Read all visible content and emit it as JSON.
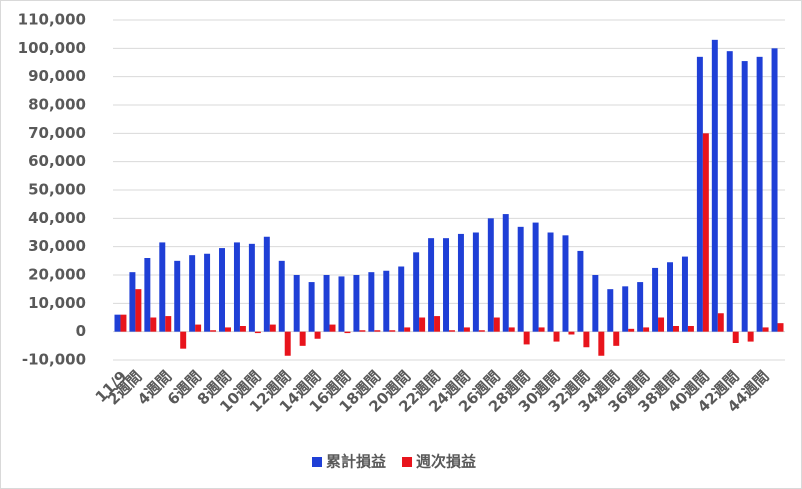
{
  "chart_data": {
    "type": "bar",
    "categories": [
      "11/9",
      "2週間",
      null,
      "4週間",
      null,
      "6週間",
      null,
      "8週間",
      null,
      "10週間",
      null,
      "12週間",
      null,
      "14週間",
      null,
      "16週間",
      null,
      "18週間",
      null,
      "20週間",
      null,
      "22週間",
      null,
      "24週間",
      null,
      "26週間",
      null,
      "28週間",
      null,
      "30週間",
      null,
      "32週間",
      null,
      "34週間",
      null,
      "36週間",
      null,
      "38週間",
      null,
      "40週間",
      null,
      "42週間",
      null,
      "44週間",
      null
    ],
    "series": [
      {
        "name": "累計損益",
        "color": "#1f3fd6",
        "values": [
          6000,
          21000,
          26000,
          31500,
          25000,
          27000,
          27500,
          29500,
          31500,
          31000,
          33500,
          25000,
          20000,
          17500,
          20000,
          19500,
          20000,
          21000,
          21500,
          23000,
          28000,
          33000,
          33000,
          34500,
          35000,
          40000,
          41500,
          37000,
          38500,
          35000,
          34000,
          28500,
          20000,
          15000,
          16000,
          17500,
          22500,
          24500,
          26500,
          97000,
          103000,
          99000,
          95500,
          97000,
          100000
        ]
      },
      {
        "name": "週次損益",
        "color": "#e8141c",
        "values": [
          6000,
          15000,
          5000,
          5500,
          -6000,
          2500,
          500,
          1500,
          2000,
          -500,
          2500,
          -8500,
          -5000,
          -2500,
          2500,
          -500,
          500,
          500,
          500,
          1500,
          5000,
          5500,
          500,
          1500,
          500,
          5000,
          1500,
          -4500,
          1500,
          -3500,
          -1000,
          -5500,
          -8500,
          -5000,
          1000,
          1500,
          5000,
          2000,
          2000,
          70000,
          6500,
          -4000,
          -3500,
          1500,
          3000
        ]
      }
    ],
    "ylim": [
      -10000,
      110000
    ],
    "yticks": [
      {
        "value": -10000,
        "label": "-10,000"
      },
      0,
      {
        "value": 10000,
        "label": "10,000"
      },
      {
        "value": 20000,
        "label": "20,000"
      },
      {
        "value": 30000,
        "label": "30,000"
      },
      {
        "value": 40000,
        "label": "40,000"
      },
      {
        "value": 50000,
        "label": "50,000"
      },
      {
        "value": 60000,
        "label": "60,000"
      },
      {
        "value": 70000,
        "label": "70,000"
      },
      {
        "value": 80000,
        "label": "80,000"
      },
      {
        "value": 90000,
        "label": "90,000"
      },
      {
        "value": 100000,
        "label": "100,000"
      },
      {
        "value": 110000,
        "label": "110,000"
      }
    ],
    "grid": true,
    "legend": "bottom"
  }
}
